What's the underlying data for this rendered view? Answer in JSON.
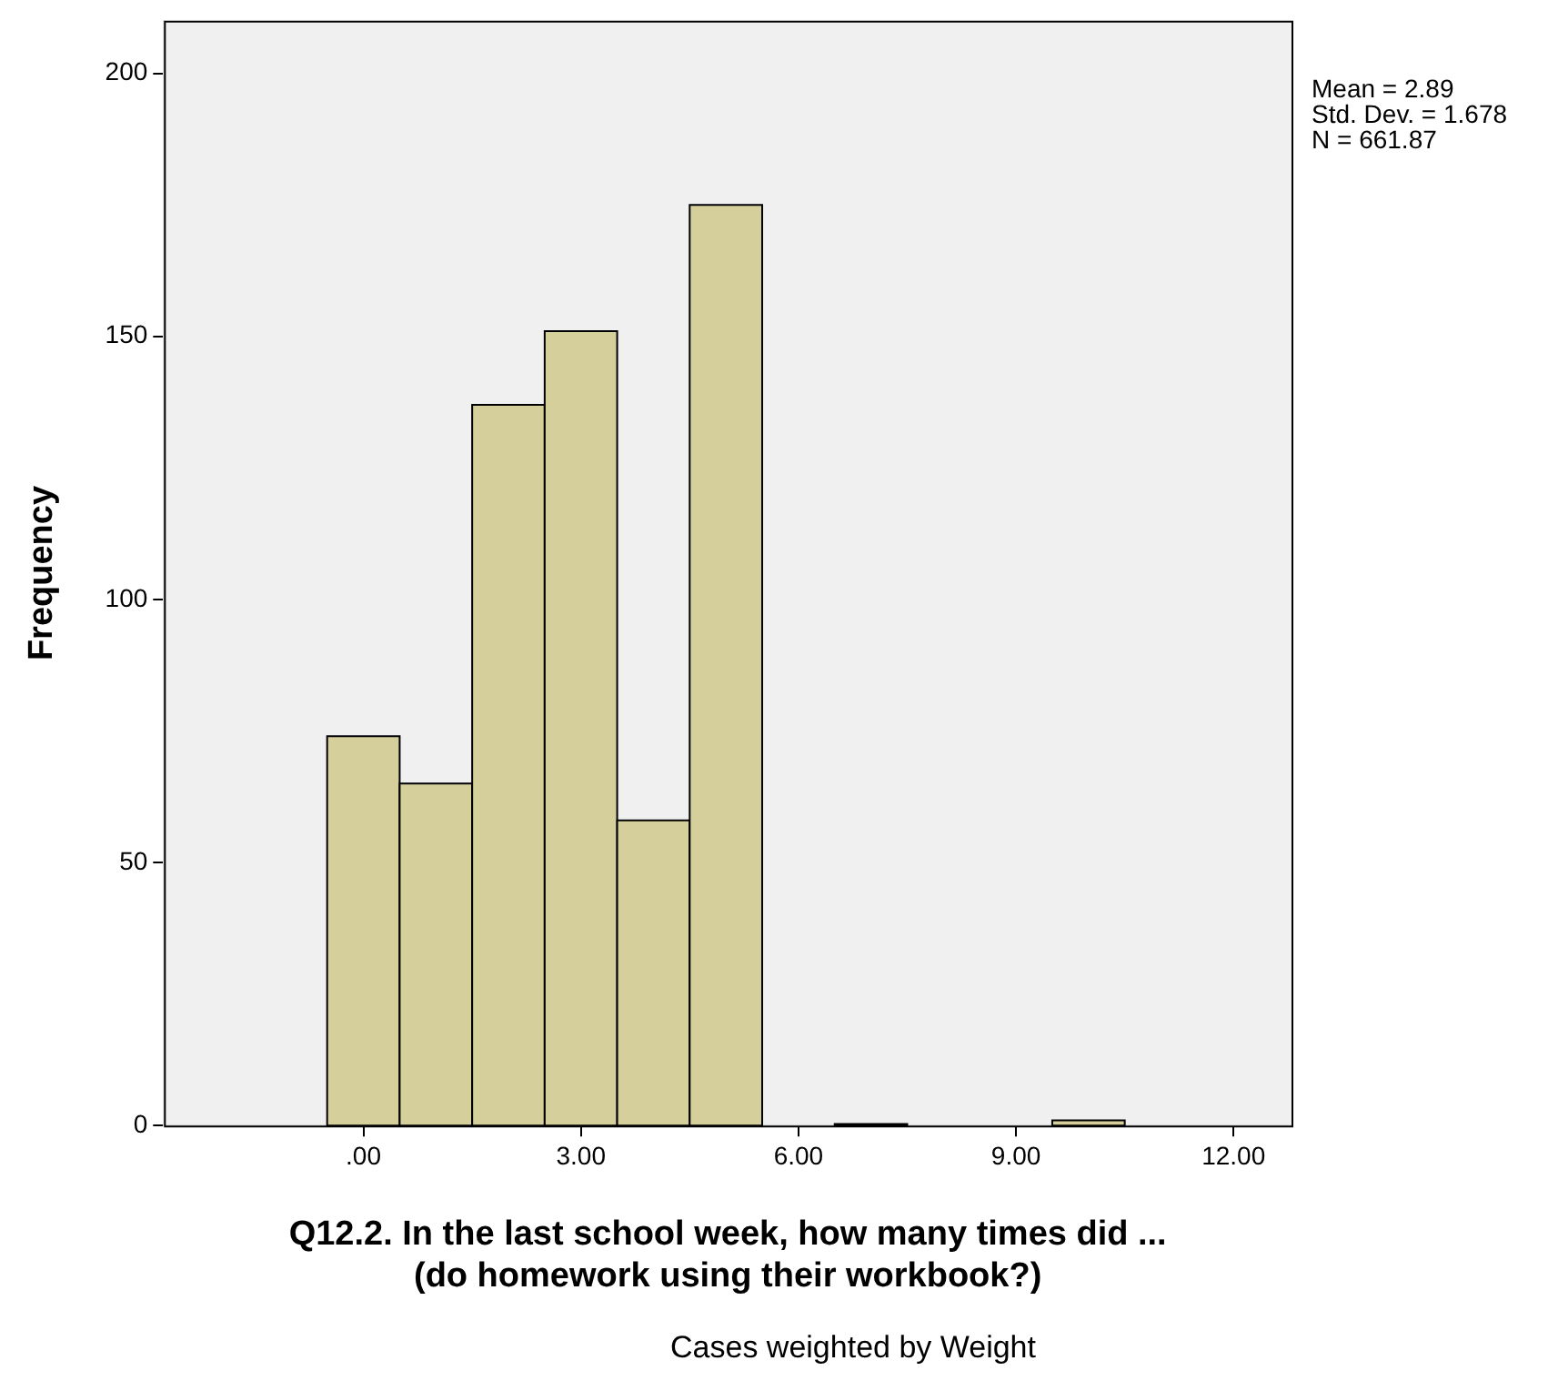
{
  "chart_data": {
    "type": "histogram",
    "xlabel": "Q12.2. In the last school week, how many times did ...\n(do homework using their workbook?)",
    "ylabel": "Frequency",
    "bins": [
      -0.5,
      0.5,
      1.5,
      2.5,
      3.5,
      4.5,
      5.5,
      6.5,
      7.5,
      8.5,
      9.5,
      10.5
    ],
    "values": [
      74,
      65,
      137,
      151,
      58,
      175,
      0,
      0.3,
      0,
      0,
      1
    ],
    "color": "#d4cf9b",
    "xlim": [
      -2.75,
      12.8
    ],
    "xticks": [
      {
        "value": 0,
        "label": ".00"
      },
      {
        "value": 3,
        "label": "3.00"
      },
      {
        "value": 6,
        "label": "6.00"
      },
      {
        "value": 9,
        "label": "9.00"
      },
      {
        "value": 12,
        "label": "12.00"
      }
    ],
    "ylim": [
      0,
      210
    ],
    "yticks": [
      0,
      50,
      100,
      150,
      200
    ],
    "grid": false,
    "legend": false,
    "annotations": [
      "Mean = 2.89",
      "Std. Dev. = 1.678",
      "N = 661.87",
      "Cases weighted by Weight"
    ]
  }
}
